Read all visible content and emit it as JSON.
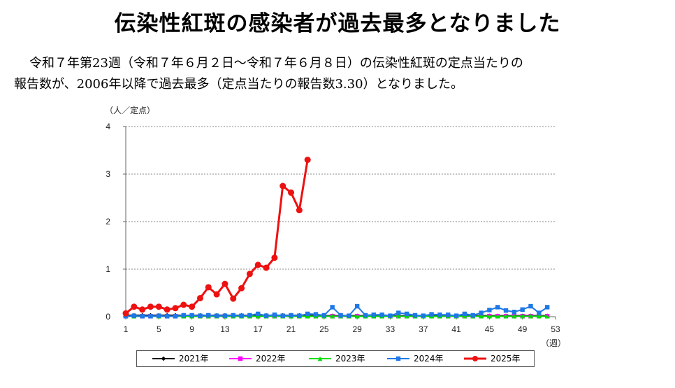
{
  "heading": "伝染性紅斑の感染者が過去最多となりました",
  "paragraph": {
    "line1": "令和７年第23週（令和７年６月２日～令和７年６月８日）の伝染性紅斑の定点当たりの",
    "line2": "報告数が、2006年以降で過去最多（定点当たりの報告数3.30）となりました。"
  },
  "chart_data": {
    "type": "line",
    "ylabel": "（人／定点）",
    "xlabel": "（週）",
    "xlim": [
      1,
      53
    ],
    "ylim": [
      0,
      4
    ],
    "xticks": [
      1,
      5,
      9,
      13,
      17,
      21,
      25,
      29,
      33,
      37,
      41,
      45,
      49,
      53
    ],
    "yticks": [
      0,
      1,
      2,
      3,
      4
    ],
    "grid": "horizontal dashed",
    "legend_position": "bottom",
    "series": [
      {
        "name": "2021年",
        "color": "#000000",
        "marker": "diamond",
        "x": [
          1,
          2,
          3,
          4,
          5,
          6,
          7,
          8,
          9,
          10,
          11,
          12,
          13,
          14,
          15,
          16,
          17,
          18,
          19,
          20,
          21,
          22,
          23,
          24,
          25,
          26,
          27,
          28,
          29,
          30,
          31,
          32,
          33,
          34,
          35,
          36,
          37,
          38,
          39,
          40,
          41,
          42,
          43,
          44,
          45,
          46,
          47,
          48,
          49,
          50,
          51,
          52
        ],
        "values": [
          0.03,
          0.03,
          0.03,
          0.03,
          0.03,
          0.03,
          0.03,
          0.03,
          0.03,
          0.03,
          0.03,
          0.03,
          0.03,
          0.03,
          0.03,
          0.03,
          0.03,
          0.03,
          0.03,
          0.03,
          0.03,
          0.03,
          0.03,
          0.02,
          0.02,
          0.02,
          0.02,
          0.02,
          0.02,
          0.02,
          0.02,
          0.02,
          0.02,
          0.02,
          0.02,
          0.02,
          0.02,
          0.02,
          0.02,
          0.02,
          0.02,
          0.02,
          0.02,
          0.02,
          0.02,
          0.02,
          0.02,
          0.02,
          0.02,
          0.02,
          0.02,
          0.02
        ]
      },
      {
        "name": "2022年",
        "color": "#ff00ff",
        "marker": "square",
        "x": [
          1,
          2,
          3,
          4,
          5,
          6,
          7,
          8,
          9,
          10,
          11,
          12,
          13,
          14,
          15,
          16,
          17,
          18,
          19,
          20,
          21,
          22,
          23,
          24,
          25,
          26,
          27,
          28,
          29,
          30,
          31,
          32,
          33,
          34,
          35,
          36,
          37,
          38,
          39,
          40,
          41,
          42,
          43,
          44,
          45,
          46,
          47,
          48,
          49,
          50,
          51,
          52
        ],
        "values": [
          0.01,
          0.01,
          0.01,
          0.01,
          0.01,
          0.01,
          0.01,
          0.01,
          0.01,
          0.01,
          0.01,
          0.01,
          0.01,
          0.01,
          0.01,
          0.01,
          0.01,
          0.01,
          0.01,
          0.01,
          0.01,
          0.01,
          0.01,
          0.01,
          0.01,
          0.01,
          0.01,
          0.01,
          0.01,
          0.01,
          0.01,
          0.01,
          0.01,
          0.01,
          0.01,
          0.01,
          0.01,
          0.01,
          0.01,
          0.01,
          0.01,
          0.01,
          0.01,
          0.01,
          0.01,
          0.01,
          0.01,
          0.01,
          0.01,
          0.01,
          0.01,
          0.01
        ]
      },
      {
        "name": "2023年",
        "color": "#00dd00",
        "marker": "triangle",
        "x": [
          1,
          2,
          3,
          4,
          5,
          6,
          7,
          8,
          9,
          10,
          11,
          12,
          13,
          14,
          15,
          16,
          17,
          18,
          19,
          20,
          21,
          22,
          23,
          24,
          25,
          26,
          27,
          28,
          29,
          30,
          31,
          32,
          33,
          34,
          35,
          36,
          37,
          38,
          39,
          40,
          41,
          42,
          43,
          44,
          45,
          46,
          47,
          48,
          49,
          50,
          51,
          52
        ],
        "values": [
          0.01,
          0.01,
          0.01,
          0.01,
          0.01,
          0.01,
          0.01,
          0.01,
          0.01,
          0.01,
          0.01,
          0.01,
          0.01,
          0.01,
          0.01,
          0.01,
          0.01,
          0.01,
          0.01,
          0.01,
          0.01,
          0.01,
          0.01,
          0.01,
          0.01,
          0.01,
          0.01,
          0.01,
          0.01,
          0.01,
          0.01,
          0.01,
          0.01,
          0.01,
          0.01,
          0.01,
          0.01,
          0.01,
          0.01,
          0.01,
          0.01,
          0.01,
          0.01,
          0.01,
          0.01,
          0.01,
          0.01,
          0.01,
          0.01,
          0.01,
          0.01,
          0.01
        ]
      },
      {
        "name": "2024年",
        "color": "#1e78e6",
        "marker": "square",
        "x": [
          1,
          2,
          3,
          4,
          5,
          6,
          7,
          8,
          9,
          10,
          11,
          12,
          13,
          14,
          15,
          16,
          17,
          18,
          19,
          20,
          21,
          22,
          23,
          24,
          25,
          26,
          27,
          28,
          29,
          30,
          31,
          32,
          33,
          34,
          35,
          36,
          37,
          38,
          39,
          40,
          41,
          42,
          43,
          44,
          45,
          46,
          47,
          48,
          49,
          50,
          51,
          52
        ],
        "values": [
          0.01,
          0.02,
          0.01,
          0.01,
          0.02,
          0.01,
          0.01,
          0.03,
          0.03,
          0.02,
          0.03,
          0.02,
          0.02,
          0.03,
          0.02,
          0.03,
          0.06,
          0.02,
          0.04,
          0.02,
          0.03,
          0.02,
          0.06,
          0.05,
          0.03,
          0.2,
          0.03,
          0.02,
          0.22,
          0.03,
          0.04,
          0.04,
          0.02,
          0.08,
          0.06,
          0.03,
          0.02,
          0.05,
          0.04,
          0.04,
          0.02,
          0.06,
          0.03,
          0.08,
          0.14,
          0.2,
          0.13,
          0.1,
          0.15,
          0.22,
          0.08,
          0.2
        ]
      },
      {
        "name": "2025年",
        "color": "#ee1111",
        "marker": "circle",
        "x": [
          1,
          2,
          3,
          4,
          5,
          6,
          7,
          8,
          9,
          10,
          11,
          12,
          13,
          14,
          15,
          16,
          17,
          18,
          19,
          20,
          21,
          22,
          23
        ],
        "values": [
          0.07,
          0.21,
          0.15,
          0.21,
          0.21,
          0.15,
          0.18,
          0.25,
          0.21,
          0.39,
          0.62,
          0.47,
          0.69,
          0.38,
          0.6,
          0.9,
          1.09,
          1.03,
          1.24,
          2.75,
          2.61,
          2.24,
          3.3
        ]
      }
    ]
  }
}
